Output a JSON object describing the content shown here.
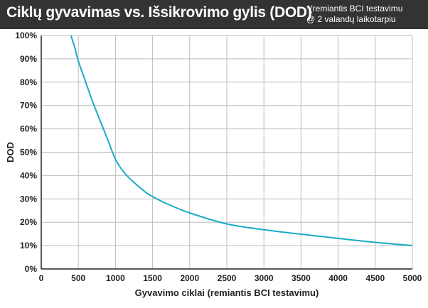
{
  "header": {
    "title": "Ciklų gyvavimas vs. Išsikrovimo gylis (DOD)",
    "note_line1": "*(remiantis BCI testavimu",
    "note_line2": "@ 2 valandų laikotarpiu"
  },
  "colors": {
    "header_bg": "#333333",
    "line": "#1aabc8",
    "grid": "#bdbdbd",
    "axis": "#222222"
  },
  "chart_data": {
    "type": "line",
    "title": "Ciklų gyvavimas vs. Išsikrovimo gylis (DOD)",
    "xlabel": "Gyvavimo ciklai (remiantis BCI testavimu)",
    "ylabel": "DOD",
    "xlim": [
      0,
      5000
    ],
    "ylim": [
      0,
      100
    ],
    "x_ticks": [
      "0",
      "500",
      "1000",
      "1500",
      "2000",
      "2500",
      "3000",
      "3500",
      "4000",
      "4500",
      "5000"
    ],
    "y_ticks": [
      "0%",
      "10%",
      "20%",
      "30%",
      "40%",
      "50%",
      "60%",
      "70%",
      "80%",
      "90%",
      "100%"
    ],
    "grid": true,
    "series": [
      {
        "x": [
          400,
          450,
          500,
          600,
          700,
          800,
          900,
          1000,
          1100,
          1200,
          1400,
          1500,
          1700,
          2000,
          2500,
          3000,
          3500,
          4000,
          4500,
          5000
        ],
        "y": [
          100,
          95,
          89,
          80,
          71,
          63,
          55,
          47,
          42,
          38.5,
          33,
          31,
          27.8,
          24,
          19.3,
          16.8,
          14.9,
          13.1,
          11.4,
          10
        ]
      }
    ]
  }
}
